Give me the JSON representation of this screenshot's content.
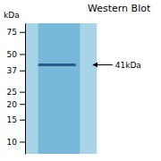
{
  "chart_data": {
    "type": "gel",
    "title": "Western Blot",
    "ylabel": "kDa",
    "values": [
      41
    ],
    "value_labels": [
      "41kDa"
    ],
    "data_labels": true,
    "color": "#2a5a8a",
    "log": "y",
    "ylim": [
      8,
      88
    ],
    "yticks": [
      10,
      15,
      20,
      25,
      37,
      50,
      75
    ],
    "tick_labels": "y",
    "grid": false
  }
}
